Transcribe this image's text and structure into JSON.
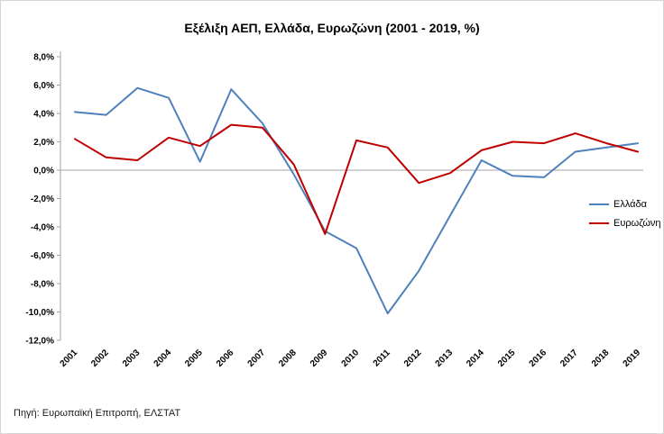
{
  "chart_data": {
    "type": "line",
    "title": "Εξέλιξη ΑΕΠ, Ελλάδα, Ευρωζώνη (2001 - 2019, %)",
    "source": "Πηγή: Ευρωπαϊκή Επιτροπή, ΕΛΣΤΑΤ",
    "categories": [
      "2001",
      "2002",
      "2003",
      "2004",
      "2005",
      "2006",
      "2007",
      "2008",
      "2009",
      "2010",
      "2011",
      "2012",
      "2013",
      "2014",
      "2015",
      "2016",
      "2017",
      "2018",
      "2019"
    ],
    "series": [
      {
        "name": "Ελλάδα",
        "color": "#4f81bd",
        "values": [
          4.1,
          3.9,
          5.8,
          5.1,
          0.6,
          5.7,
          3.3,
          -0.3,
          -4.3,
          -5.5,
          -10.1,
          -7.1,
          -3.2,
          0.7,
          -0.4,
          -0.5,
          1.3,
          1.6,
          1.9
        ]
      },
      {
        "name": "Ευρωζώνη",
        "color": "#c00000",
        "values": [
          2.2,
          0.9,
          0.7,
          2.3,
          1.7,
          3.2,
          3.0,
          0.4,
          -4.5,
          2.1,
          1.6,
          -0.9,
          -0.2,
          1.4,
          2.0,
          1.9,
          2.6,
          1.9,
          1.3
        ]
      }
    ],
    "ylim": [
      -12,
      8
    ],
    "ytick_step": 2,
    "ytick_format": "comma-decimal-percent",
    "xlabel": "",
    "ylabel": "",
    "grid": false,
    "zero_line": true,
    "legend_position": "right-inside",
    "axis_color": "#a6a6a6"
  }
}
